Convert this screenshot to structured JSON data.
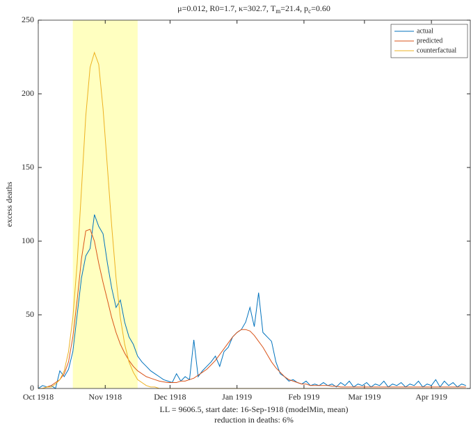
{
  "chart_data": {
    "type": "line",
    "title": [
      "μ=0.012, R0=1.7, κ=302.7, T",
      "m",
      "=21.4, p",
      "c",
      "=0.60"
    ],
    "x_label": [
      "LL = 9606.5, start date: 16-Sep-1918 (modelMin, mean)",
      "reduction in deaths: 6%"
    ],
    "y_label": "excess deaths",
    "xlim": [
      0,
      200
    ],
    "ylim": [
      0,
      250
    ],
    "yticks": [
      0,
      50,
      100,
      150,
      200,
      250
    ],
    "xticks": [
      {
        "value": 0,
        "label": "Oct 1918"
      },
      {
        "value": 31,
        "label": "Nov 1918"
      },
      {
        "value": 61,
        "label": "Dec 1918"
      },
      {
        "value": 92,
        "label": "Jan 1919"
      },
      {
        "value": 123,
        "label": "Feb 1919"
      },
      {
        "value": 151,
        "label": "Mar 1919"
      },
      {
        "value": 182,
        "label": "Apr 1919"
      }
    ],
    "shaded_region": [
      16,
      46
    ],
    "shade_color": "#ffffc0",
    "legend": "top-right",
    "x": [
      0,
      2,
      4,
      6,
      8,
      10,
      12,
      14,
      16,
      18,
      20,
      22,
      24,
      26,
      28,
      30,
      32,
      34,
      36,
      38,
      40,
      42,
      44,
      46,
      48,
      50,
      52,
      54,
      56,
      58,
      60,
      62,
      64,
      66,
      68,
      70,
      72,
      74,
      76,
      78,
      80,
      82,
      84,
      86,
      88,
      90,
      92,
      94,
      96,
      98,
      100,
      102,
      104,
      106,
      108,
      110,
      112,
      114,
      116,
      118,
      120,
      122,
      124,
      126,
      128,
      130,
      132,
      134,
      136,
      138,
      140,
      142,
      144,
      146,
      148,
      150,
      152,
      154,
      156,
      158,
      160,
      162,
      164,
      166,
      168,
      170,
      172,
      174,
      176,
      178,
      180,
      182,
      184,
      186,
      188,
      190,
      192,
      194,
      196,
      198
    ],
    "series": [
      {
        "name": "actual",
        "color": "#0072bd",
        "values": [
          0,
          2,
          1,
          2,
          0,
          12,
          8,
          13,
          25,
          50,
          75,
          90,
          95,
          118,
          110,
          105,
          85,
          68,
          55,
          60,
          45,
          35,
          30,
          22,
          18,
          15,
          12,
          10,
          8,
          6,
          5,
          4,
          10,
          5,
          8,
          6,
          33,
          8,
          12,
          15,
          18,
          22,
          15,
          25,
          28,
          35,
          38,
          40,
          45,
          55,
          42,
          65,
          38,
          35,
          32,
          18,
          10,
          8,
          5,
          6,
          4,
          3,
          5,
          2,
          3,
          2,
          4,
          2,
          3,
          1,
          4,
          2,
          5,
          1,
          3,
          2,
          4,
          1,
          3,
          2,
          5,
          1,
          3,
          2,
          4,
          1,
          3,
          2,
          5,
          1,
          3,
          2,
          6,
          1,
          5,
          2,
          4,
          1,
          3,
          2
        ]
      },
      {
        "name": "predicted",
        "color": "#d95319",
        "values": [
          0,
          0,
          1,
          2,
          4,
          6,
          10,
          18,
          35,
          60,
          88,
          107,
          108,
          100,
          85,
          72,
          60,
          48,
          38,
          30,
          24,
          19,
          15,
          12,
          10,
          8,
          7,
          6,
          5,
          4.5,
          4,
          4,
          4,
          5,
          5,
          6,
          7,
          9,
          11,
          13,
          16,
          19,
          23,
          27,
          31,
          35,
          38,
          40,
          40,
          39,
          36,
          32,
          28,
          23,
          18,
          14,
          11,
          8,
          6,
          5,
          4,
          3,
          3,
          2,
          2,
          2,
          2,
          2,
          1.5,
          1.5,
          1,
          1,
          1,
          1,
          1,
          1,
          1,
          1,
          1,
          1,
          1,
          1,
          1,
          1,
          1,
          1,
          1,
          1,
          1,
          1,
          1,
          1,
          1,
          1,
          1,
          1,
          1,
          1,
          1,
          1
        ]
      },
      {
        "name": "counterfactual",
        "color": "#edb120",
        "values": [
          0,
          0,
          1,
          1,
          3,
          6,
          12,
          25,
          48,
          85,
          135,
          185,
          218,
          228,
          220,
          190,
          150,
          110,
          75,
          48,
          30,
          18,
          11,
          6,
          4,
          2,
          1,
          1,
          0,
          0,
          0,
          0,
          0,
          0,
          0,
          0,
          0,
          0,
          0,
          0,
          0,
          0,
          0,
          0,
          0,
          0,
          0,
          0,
          0,
          0,
          0,
          0,
          0,
          0,
          0,
          0,
          0,
          0,
          0,
          0,
          0,
          0,
          0,
          0,
          0,
          0,
          0,
          0,
          0,
          0,
          0,
          0,
          0,
          0,
          0,
          0,
          0,
          0,
          0,
          0,
          0,
          0,
          0,
          0,
          0,
          0,
          0,
          0,
          0,
          0,
          0,
          0,
          0,
          0,
          0,
          0,
          0,
          0,
          0,
          0
        ]
      }
    ]
  }
}
